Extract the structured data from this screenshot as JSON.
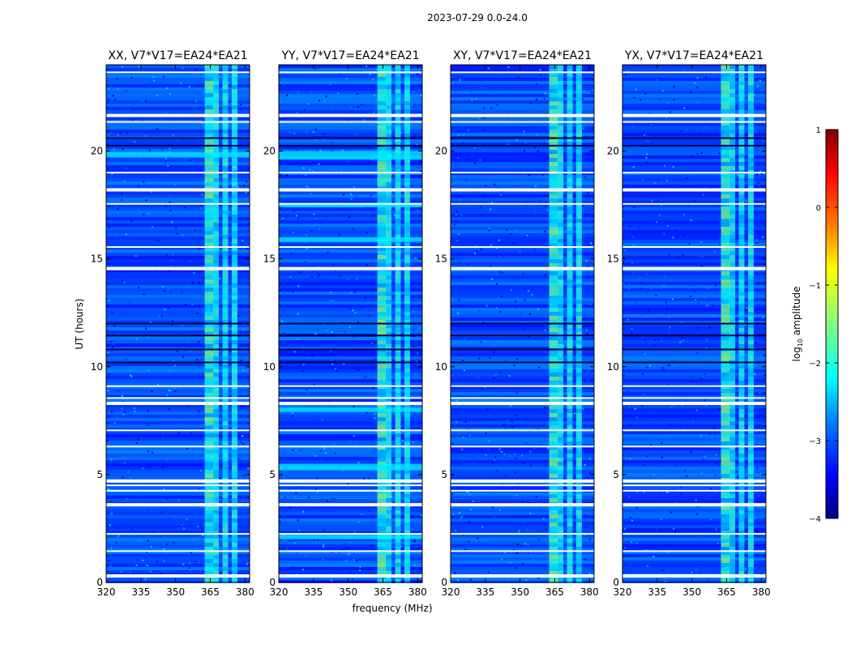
{
  "suptitle": "2023-07-29 0.0-24.0",
  "xlabel": "frequency (MHz)",
  "ylabel": "UT (hours)",
  "colorbar": {
    "label": "log₁₀ amplitude",
    "label_base": "log",
    "label_sub": "10",
    "label_rest": " amplitude",
    "range": [
      -4,
      1
    ],
    "ticks": [
      "1",
      "0",
      "−1",
      "−2",
      "−3",
      "−4"
    ],
    "tick_values": [
      1,
      0,
      -1,
      -2,
      -3,
      -4
    ],
    "colormap": [
      "#00007f",
      "#0000ff",
      "#007fff",
      "#00ffff",
      "#7fff7f",
      "#ffff00",
      "#ff7f00",
      "#ff0000",
      "#7f0000"
    ]
  },
  "chart_data": [
    {
      "type": "heatmap",
      "title": "XX, V7*V17=EA24*EA21",
      "xlabel": "",
      "ylabel": "UT (hours)",
      "xlim": [
        320,
        382
      ],
      "ylim": [
        0,
        24
      ],
      "xticks": [
        320,
        335,
        350,
        365,
        380
      ],
      "xticklabels": [
        "320",
        "335",
        "350",
        "365",
        "380"
      ],
      "yticks": [
        0,
        5,
        10,
        15,
        20
      ],
      "yticklabels": [
        "0",
        "5",
        "10",
        "15",
        "20"
      ],
      "rfi_channels_mhz": [
        364.5,
        367.5,
        371.5,
        375.5
      ],
      "bright_bands_hours": [
        [
          19.7,
          19.95
        ]
      ]
    },
    {
      "type": "heatmap",
      "title": "YY, V7*V17=EA24*EA21",
      "xlabel": "frequency (MHz)",
      "ylabel": "",
      "xlim": [
        320,
        382
      ],
      "ylim": [
        0,
        24
      ],
      "xticks": [
        320,
        335,
        350,
        365,
        380
      ],
      "xticklabels": [
        "320",
        "335",
        "350",
        "365",
        "380"
      ],
      "yticks": [
        0,
        5,
        10,
        15,
        20
      ],
      "yticklabels": [
        "0",
        "5",
        "10",
        "15",
        "20"
      ],
      "rfi_channels_mhz": [
        364.5,
        367.5,
        371.5,
        375.5
      ],
      "bright_bands_hours": [
        [
          19.6,
          20.0
        ],
        [
          17.4,
          17.6
        ],
        [
          15.8,
          16.0
        ],
        [
          7.9,
          8.1
        ],
        [
          5.2,
          5.5
        ],
        [
          2.0,
          2.2
        ]
      ]
    },
    {
      "type": "heatmap",
      "title": "XY, V7*V17=EA24*EA21",
      "xlabel": "",
      "ylabel": "",
      "xlim": [
        320,
        382
      ],
      "ylim": [
        0,
        24
      ],
      "xticks": [
        320,
        335,
        350,
        365,
        380
      ],
      "xticklabels": [
        "320",
        "335",
        "350",
        "365",
        "380"
      ],
      "yticks": [
        0,
        5,
        10,
        15,
        20
      ],
      "yticklabels": [
        "0",
        "5",
        "10",
        "15",
        "20"
      ],
      "rfi_channels_mhz": [
        364.5,
        367.5,
        371.5,
        375.5
      ],
      "bright_bands_hours": []
    },
    {
      "type": "heatmap",
      "title": "YX, V7*V17=EA24*EA21",
      "xlabel": "",
      "ylabel": "",
      "xlim": [
        320,
        382
      ],
      "ylim": [
        0,
        24
      ],
      "xticks": [
        320,
        335,
        350,
        365,
        380
      ],
      "xticklabels": [
        "320",
        "335",
        "350",
        "365",
        "380"
      ],
      "yticks": [
        0,
        5,
        10,
        15,
        20
      ],
      "yticklabels": [
        "0",
        "5",
        "10",
        "15",
        "20"
      ],
      "rfi_channels_mhz": [
        364.5,
        367.5,
        371.5,
        375.5
      ],
      "bright_bands_hours": []
    }
  ],
  "flagged_hours": [
    0.3,
    1.45,
    2.25,
    3.6,
    4.25,
    4.5,
    4.7,
    6.3,
    7.05,
    8.3,
    8.55,
    9.1,
    14.55,
    15.55,
    17.55,
    18.2,
    19.0,
    21.35,
    21.65,
    23.65
  ],
  "dark_hours": [
    10.2,
    10.8,
    11.45,
    12.0,
    20.25,
    20.6
  ]
}
